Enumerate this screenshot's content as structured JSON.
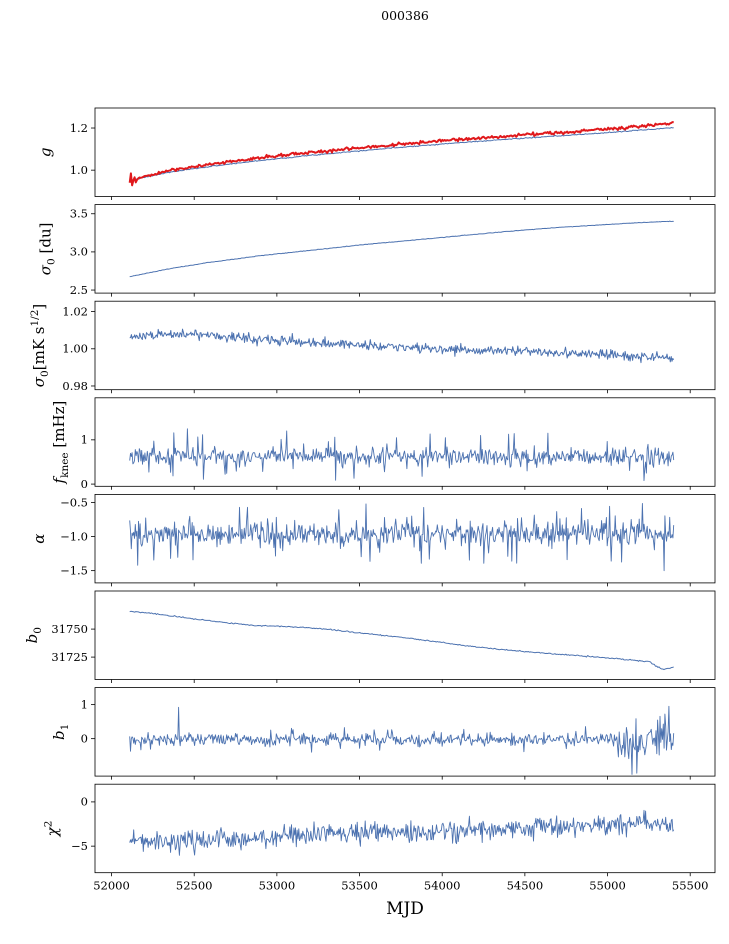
{
  "title": "000386",
  "chart_data": {
    "type": "line",
    "title": "000386",
    "xlabel": "MJD",
    "legend": "none",
    "grid": false,
    "x_range": [
      52110,
      55400
    ],
    "x_axis": {
      "lim": [
        51900,
        55650
      ],
      "ticks": [
        52000,
        52500,
        53000,
        53500,
        54000,
        54500,
        55000,
        55500
      ],
      "tick_labels": [
        "52000",
        "52500",
        "53000",
        "53500",
        "54000",
        "54500",
        "55000",
        "55500"
      ]
    },
    "colors": {
      "primary": "#4c72b0",
      "secondary": "#e0191c",
      "axis": "#000000"
    },
    "panels": [
      {
        "id": "g",
        "ylabel": [
          {
            "t": "g",
            "i": 1
          }
        ],
        "ylim": [
          0.875,
          1.295
        ],
        "yticks": [
          {
            "v": 1.0,
            "label": "1.0"
          },
          {
            "v": 1.2,
            "label": "1.2"
          }
        ],
        "series": [
          {
            "name": "gain-model",
            "color": "#4c72b0",
            "lw": 1,
            "n": 450,
            "noise": 0.0012,
            "trend": [
              [
                52110,
                0.951
              ],
              [
                52350,
                0.99
              ],
              [
                52600,
                1.018
              ],
              [
                52900,
                1.046
              ],
              [
                53200,
                1.07
              ],
              [
                53500,
                1.092
              ],
              [
                53800,
                1.112
              ],
              [
                54100,
                1.13
              ],
              [
                54400,
                1.147
              ],
              [
                54700,
                1.162
              ],
              [
                55000,
                1.178
              ],
              [
                55200,
                1.19
              ],
              [
                55400,
                1.202
              ]
            ]
          },
          {
            "name": "gain-measured",
            "color": "#e0191c",
            "lw": 2,
            "n": 450,
            "noise": 0.0035,
            "trend": [
              [
                52110,
                0.953
              ],
              [
                52350,
                0.998
              ],
              [
                52600,
                1.028
              ],
              [
                52900,
                1.058
              ],
              [
                53200,
                1.083
              ],
              [
                53500,
                1.105
              ],
              [
                53800,
                1.126
              ],
              [
                54100,
                1.145
              ],
              [
                54400,
                1.162
              ],
              [
                54700,
                1.178
              ],
              [
                55000,
                1.196
              ],
              [
                55200,
                1.208
              ],
              [
                55400,
                1.222
              ]
            ],
            "spikes": [
              [
                52112,
                0.94
              ],
              [
                52120,
                0.985
              ],
              [
                52128,
                0.928
              ],
              [
                52136,
                0.966
              ],
              [
                52144,
                0.942
              ]
            ]
          }
        ]
      },
      {
        "id": "sigma0-du",
        "ylabel": [
          {
            "t": "σ",
            "i": 1
          },
          {
            "t": "0",
            "sub": 1
          },
          {
            "t": " [du]"
          }
        ],
        "ylim": [
          2.46,
          3.62
        ],
        "yticks": [
          {
            "v": 2.5,
            "label": "2.5"
          },
          {
            "v": 3.0,
            "label": "3.0"
          },
          {
            "v": 3.5,
            "label": "3.5"
          }
        ],
        "series": [
          {
            "name": "sigma0-du",
            "color": "#4c72b0",
            "lw": 1,
            "n": 420,
            "noise": 0.0018,
            "trend": [
              [
                52110,
                2.675
              ],
              [
                52350,
                2.78
              ],
              [
                52600,
                2.865
              ],
              [
                52900,
                2.95
              ],
              [
                53200,
                3.02
              ],
              [
                53500,
                3.09
              ],
              [
                53800,
                3.15
              ],
              [
                54100,
                3.21
              ],
              [
                54400,
                3.27
              ],
              [
                54700,
                3.32
              ],
              [
                55000,
                3.36
              ],
              [
                55200,
                3.385
              ],
              [
                55400,
                3.402
              ]
            ]
          }
        ]
      },
      {
        "id": "sigma0-mks",
        "ylabel": [
          {
            "t": "σ",
            "i": 1
          },
          {
            "t": "0",
            "sub": 1
          },
          {
            "t": "[mK s"
          },
          {
            "t": "1/2",
            "sup": 1
          },
          {
            "t": "]"
          }
        ],
        "ylim": [
          0.978,
          1.0256
        ],
        "yticks": [
          {
            "v": 0.98,
            "label": "0.98"
          },
          {
            "v": 1.0,
            "label": "1.00"
          },
          {
            "v": 1.02,
            "label": "1.02"
          }
        ],
        "series": [
          {
            "name": "sigma0-mks",
            "color": "#4c72b0",
            "lw": 1,
            "n": 650,
            "noise": 0.0012,
            "spike_prob": 0.02,
            "spike_scale": 2.2,
            "trend": [
              [
                52110,
                1.0065
              ],
              [
                52300,
                1.0075
              ],
              [
                52500,
                1.0078
              ],
              [
                52700,
                1.0068
              ],
              [
                52900,
                1.0052
              ],
              [
                53100,
                1.0038
              ],
              [
                53300,
                1.003
              ],
              [
                53500,
                1.0022
              ],
              [
                53700,
                1.0012
              ],
              [
                53900,
                1.0002
              ],
              [
                54100,
                0.9995
              ],
              [
                54300,
                0.999
              ],
              [
                54500,
                0.9985
              ],
              [
                54700,
                0.998
              ],
              [
                54900,
                0.9972
              ],
              [
                55100,
                0.9962
              ],
              [
                55250,
                0.9958
              ],
              [
                55400,
                0.9955
              ]
            ]
          }
        ]
      },
      {
        "id": "fknee",
        "ylabel": [
          {
            "t": "f",
            "i": 1
          },
          {
            "t": "knee",
            "sub": 1
          },
          {
            "t": " [mHz]"
          }
        ],
        "ylim": [
          -0.05,
          1.95
        ],
        "yticks": [
          {
            "v": 0,
            "label": "0"
          },
          {
            "v": 1,
            "label": "1"
          }
        ],
        "series": [
          {
            "name": "fknee",
            "color": "#4c72b0",
            "lw": 0.9,
            "n": 680,
            "noise": 0.1,
            "spike_prob": 0.05,
            "spike_scale": 4,
            "trend": [
              [
                52110,
                0.63
              ],
              [
                55400,
                0.62
              ]
            ],
            "spikes": [
              [
                52460,
                1.25
              ],
              [
                53060,
                1.2
              ],
              [
                54640,
                1.15
              ]
            ]
          }
        ]
      },
      {
        "id": "alpha",
        "ylabel": [
          {
            "t": "α",
            "i": 1
          }
        ],
        "ylim": [
          -1.68,
          -0.38
        ],
        "yticks": [
          {
            "v": -1.5,
            "label": "−1.5"
          },
          {
            "v": -1.0,
            "label": "−1.0"
          },
          {
            "v": -0.5,
            "label": "−0.5"
          }
        ],
        "series": [
          {
            "name": "alpha",
            "color": "#4c72b0",
            "lw": 0.9,
            "n": 680,
            "noise": 0.09,
            "spike_prob": 0.05,
            "spike_scale": 3.5,
            "trend": [
              [
                52110,
                -0.97
              ],
              [
                55400,
                -0.95
              ]
            ],
            "spikes": [
              [
                52160,
                -1.42
              ],
              [
                53540,
                -0.52
              ],
              [
                55340,
                -1.5
              ]
            ]
          }
        ]
      },
      {
        "id": "b0",
        "ylabel": [
          {
            "t": "b",
            "i": 1
          },
          {
            "t": "0",
            "sub": 1
          }
        ],
        "ylim": [
          31705,
          31784
        ],
        "yticks": [
          {
            "v": 31725,
            "label": "31725"
          },
          {
            "v": 31750,
            "label": "31750"
          }
        ],
        "series": [
          {
            "name": "b0",
            "color": "#4c72b0",
            "lw": 1,
            "n": 450,
            "noise": 0.25,
            "trend": [
              [
                52110,
                31766
              ],
              [
                52300,
                31763
              ],
              [
                52500,
                31759
              ],
              [
                52700,
                31755.5
              ],
              [
                52900,
                31753
              ],
              [
                53100,
                31752
              ],
              [
                53300,
                31750
              ],
              [
                53500,
                31746.5
              ],
              [
                53700,
                31743.5
              ],
              [
                53900,
                31740
              ],
              [
                54100,
                31736
              ],
              [
                54300,
                31732.5
              ],
              [
                54500,
                31730
              ],
              [
                54700,
                31727.5
              ],
              [
                54900,
                31725.5
              ],
              [
                55100,
                31723
              ],
              [
                55250,
                31721
              ],
              [
                55330,
                31714
              ],
              [
                55400,
                31716
              ]
            ]
          }
        ]
      },
      {
        "id": "b1",
        "ylabel": [
          {
            "t": "b",
            "i": 1
          },
          {
            "t": "1",
            "sub": 1
          }
        ],
        "ylim": [
          -1.1,
          1.5
        ],
        "yticks": [
          {
            "v": 0,
            "label": "0"
          },
          {
            "v": 1,
            "label": "1"
          }
        ],
        "series": [
          {
            "name": "b1",
            "color": "#4c72b0",
            "lw": 0.9,
            "n": 680,
            "noise": 0.09,
            "spike_prob": 0.04,
            "spike_scale": 3,
            "boost": {
              "from": 55060,
              "factor": 3
            },
            "trend": [
              [
                52110,
                -0.03
              ],
              [
                55400,
                -0.02
              ]
            ],
            "spikes": [
              [
                52405,
                0.92
              ],
              [
                55150,
                -1.05
              ],
              [
                55370,
                0.95
              ]
            ]
          }
        ]
      },
      {
        "id": "chi2",
        "ylabel": [
          {
            "t": "χ",
            "i": 1
          },
          {
            "t": "2",
            "sup": 1
          }
        ],
        "ylim": [
          -8,
          2
        ],
        "yticks": [
          {
            "v": -5,
            "label": "−5"
          },
          {
            "v": 0,
            "label": "0"
          }
        ],
        "series": [
          {
            "name": "chi2",
            "color": "#4c72b0",
            "lw": 0.9,
            "n": 680,
            "noise": 0.55,
            "spike_prob": 0.05,
            "spike_scale": 2,
            "trend": [
              [
                52110,
                -4.3
              ],
              [
                52350,
                -4.55
              ],
              [
                52600,
                -4.35
              ],
              [
                52900,
                -4.0
              ],
              [
                53200,
                -3.7
              ],
              [
                53500,
                -3.5
              ],
              [
                53800,
                -3.45
              ],
              [
                54100,
                -3.2
              ],
              [
                54400,
                -3.0
              ],
              [
                54700,
                -2.8
              ],
              [
                55000,
                -2.55
              ],
              [
                55200,
                -2.45
              ],
              [
                55400,
                -2.65
              ]
            ]
          }
        ]
      }
    ]
  }
}
